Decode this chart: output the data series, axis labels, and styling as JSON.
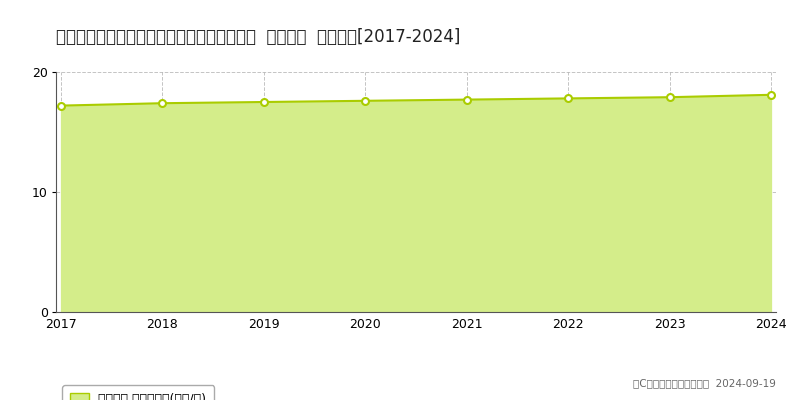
{
  "title": "長野県塩尻市大字大門字桔梗ヶ原６９番１０  基準地価  地価推移[2017-2024]",
  "years": [
    2017,
    2018,
    2019,
    2020,
    2021,
    2022,
    2023,
    2024
  ],
  "values": [
    17.2,
    17.4,
    17.5,
    17.6,
    17.7,
    17.8,
    17.9,
    18.1
  ],
  "ylim": [
    0,
    20
  ],
  "yticks": [
    0,
    10,
    20
  ],
  "line_color": "#aacc00",
  "fill_color": "#d4ed8a",
  "marker_color": "#aacc00",
  "marker_face": "#ffffff",
  "background_color": "#ffffff",
  "grid_color": "#aaaaaa",
  "legend_label": "基準地価 平均坪単価(万円/坪)",
  "copyright_text": "（C）土地価格ドットコム  2024-09-19",
  "title_fontsize": 12,
  "axis_fontsize": 9,
  "legend_fontsize": 9
}
